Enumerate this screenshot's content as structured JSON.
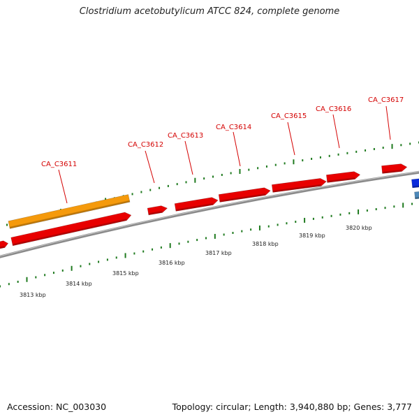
{
  "title": "Clostridium acetobutylicum ATCC 824, complete genome",
  "footer": {
    "accession": "Accession: NC_003030",
    "summary": "Topology: circular; Length: 3,940,880 bp; Genes: 3,777"
  },
  "colors": {
    "gene": "#e80000",
    "cds_orange": "#f59a0c",
    "backbone": "#808080",
    "tick": "#1f7a1f",
    "label": "#d40000",
    "blue_feature": "#0a2bdc",
    "steel_feature": "#4d88b8"
  },
  "gene_labels": [
    "CA_C3611",
    "CA_C3612",
    "CA_C3613",
    "CA_C3614",
    "CA_C3615",
    "CA_C3616",
    "CA_C3617"
  ],
  "scale_labels": [
    "3813 kbp",
    "3814 kbp",
    "3815 kbp",
    "3816 kbp",
    "3817 kbp",
    "3818 kbp",
    "3819 kbp",
    "3820 kbp"
  ]
}
